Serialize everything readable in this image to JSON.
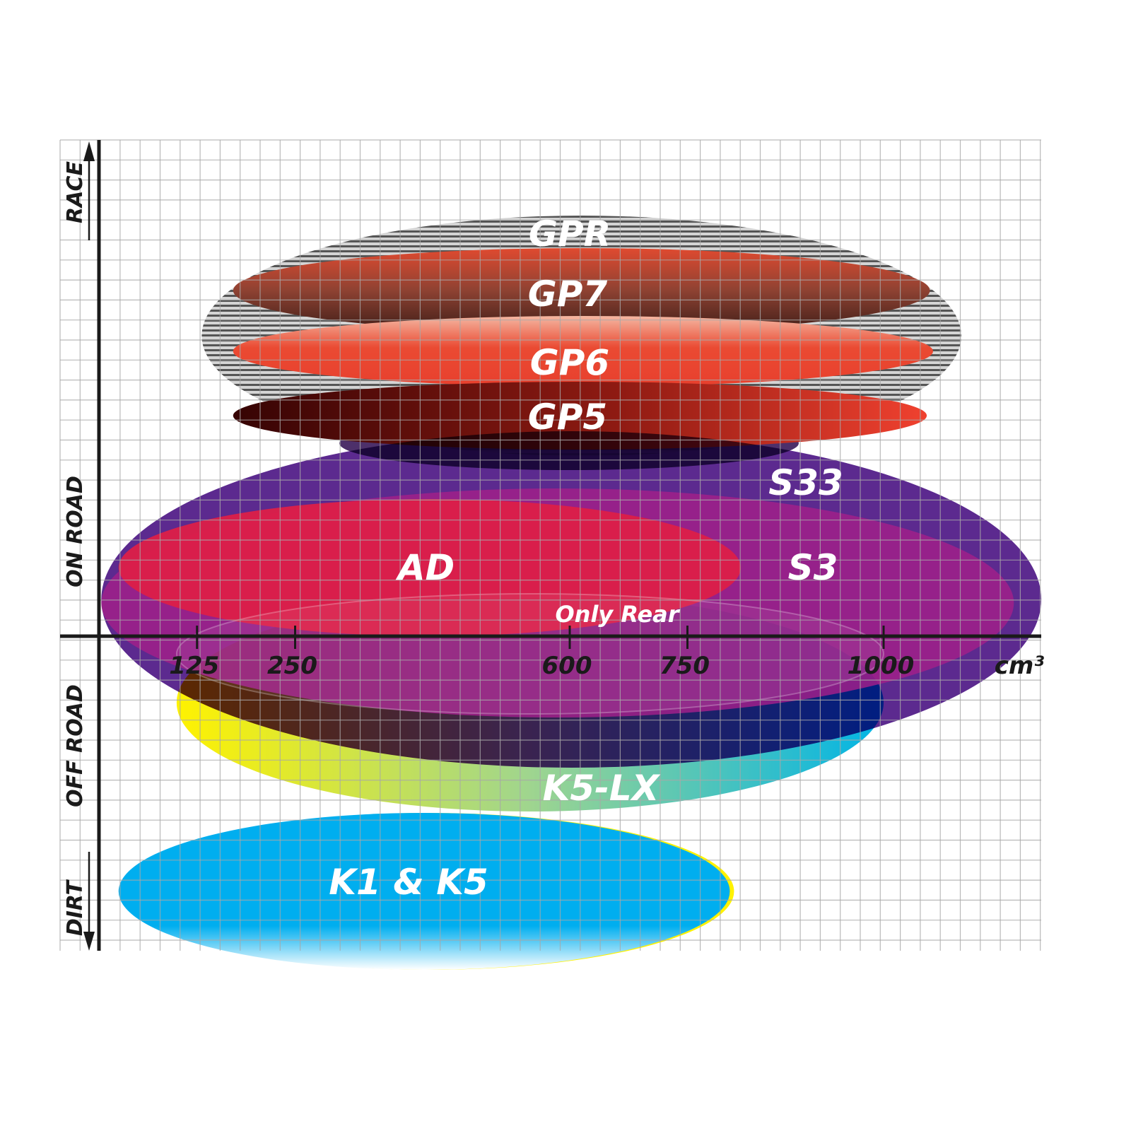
{
  "chart_data": {
    "type": "ellipse-range",
    "xlabel": "cm³",
    "x_ticks": [
      125,
      250,
      600,
      750,
      1000
    ],
    "y_categories": [
      "RACE",
      "ON ROAD",
      "OFF ROAD",
      "DIRT"
    ],
    "grid": true,
    "series": [
      {
        "name": "GPR",
        "category": "RACE",
        "cc_range": [
          131,
          1099
        ],
        "color": "#8a8a8a"
      },
      {
        "name": "GP7",
        "category": "RACE",
        "cc_range": [
          171,
          1059
        ],
        "color": "#a0412c"
      },
      {
        "name": "GP6",
        "category": "RACE",
        "cc_range": [
          171,
          1063
        ],
        "color": "#e8402e"
      },
      {
        "name": "GP5",
        "category": "RACE",
        "cc_range": [
          171,
          1055
        ],
        "color": "#8a1a10"
      },
      {
        "name": "S33",
        "category": "ON ROAD",
        "cc_range": [
          3,
          1201
        ],
        "color": "#5c2a8f"
      },
      {
        "name": "S3",
        "category": "ON ROAD",
        "cc_range": [
          3,
          1166
        ],
        "color": "#a0208a"
      },
      {
        "name": "AD",
        "category": "ON ROAD",
        "cc_range": [
          25,
          818
        ],
        "color": "#dc1f48"
      },
      {
        "name": "Only Rear",
        "category": "ON ROAD",
        "cc_range": [
          99,
          1000
        ],
        "color": "#b02a70"
      },
      {
        "name": "K5-LX",
        "category": "OFF ROAD",
        "cc_range": [
          99,
          1000
        ],
        "color": "#6cc6a0"
      },
      {
        "name": "K1 & K5",
        "category": "DIRT",
        "cc_range": [
          25,
          804
        ],
        "color": "#00aeef"
      }
    ]
  }
}
